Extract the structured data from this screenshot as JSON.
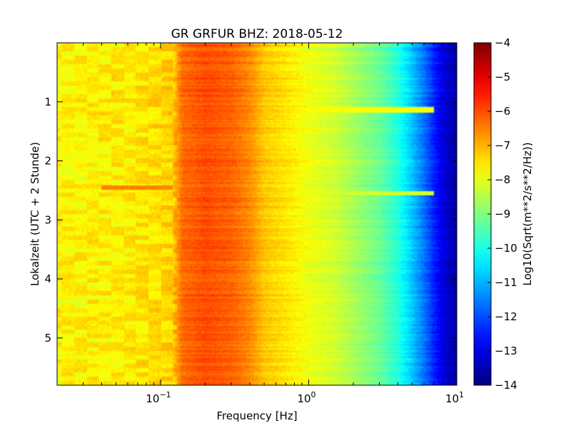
{
  "chart_data": {
    "type": "heatmap",
    "title": "GR GRFUR BHZ: 2018-05-12",
    "xlabel": "Frequency [Hz]",
    "ylabel": "Lokalzeit (UTC + 2 Stunde)",
    "x_scale": "log",
    "xlim": [
      0.02,
      10
    ],
    "x_ticks": [
      {
        "value": 0.1,
        "base": "10",
        "exp": "−1"
      },
      {
        "value": 1,
        "base": "10",
        "exp": "0"
      },
      {
        "value": 10,
        "base": "10",
        "exp": "1"
      }
    ],
    "ylim": [
      0,
      5.8
    ],
    "y_inverted": true,
    "y_ticks": [
      1,
      2,
      3,
      4,
      5
    ],
    "colorbar": {
      "label": "Log10(Sqrt(m**2/s**2/Hz))",
      "range": [
        -14,
        -4
      ],
      "ticks": [
        -4,
        -5,
        -6,
        -7,
        -8,
        -9,
        -10,
        -11,
        -12,
        -13,
        -14
      ],
      "colormap": "jet"
    },
    "psd_profile": {
      "frequencies": [
        0.02,
        0.04,
        0.06,
        0.08,
        0.1,
        0.12,
        0.14,
        0.2,
        0.3,
        0.4,
        0.5,
        0.7,
        1,
        1.5,
        2,
        3,
        4,
        5,
        6,
        7,
        8,
        9,
        10
      ],
      "log10_values": [
        -7.7,
        -7.6,
        -7.6,
        -7.5,
        -7.4,
        -7.3,
        -6.3,
        -6.0,
        -6.2,
        -6.6,
        -7.2,
        -7.5,
        -7.9,
        -8.2,
        -8.6,
        -9.2,
        -9.9,
        -10.8,
        -11.6,
        -12.4,
        -13.0,
        -13.4,
        -13.6
      ]
    },
    "features": [
      {
        "time": 2.45,
        "freq_range": [
          0.04,
          0.12
        ],
        "log10_value": -6.5
      },
      {
        "time": 1.13,
        "freq_range": [
          0.6,
          7
        ],
        "log10_value": -7.8
      },
      {
        "time": 2.55,
        "freq_range": [
          0.4,
          7
        ],
        "log10_value": -8.2
      }
    ],
    "grid": false
  }
}
